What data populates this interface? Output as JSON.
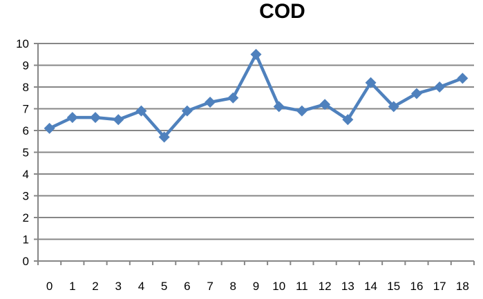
{
  "chart_data": {
    "type": "line",
    "title": "COD",
    "xlabel": "",
    "ylabel": "",
    "categories": [
      "0",
      "1",
      "2",
      "3",
      "4",
      "5",
      "6",
      "7",
      "8",
      "9",
      "10",
      "11",
      "12",
      "13",
      "14",
      "15",
      "16",
      "17",
      "18"
    ],
    "series": [
      {
        "values": [
          6.1,
          6.6,
          6.6,
          6.5,
          6.9,
          5.7,
          6.9,
          7.3,
          7.5,
          9.5,
          7.1,
          6.9,
          7.2,
          6.5,
          8.2,
          7.1,
          7.7,
          8.0,
          8.4
        ],
        "color": "#4f81bd",
        "marker": "diamond"
      }
    ],
    "ylim": [
      0,
      10
    ],
    "yticks": [
      "0",
      "1",
      "2",
      "3",
      "4",
      "5",
      "6",
      "7",
      "8",
      "9",
      "10"
    ],
    "grid": "horizontal",
    "legend": "none"
  }
}
